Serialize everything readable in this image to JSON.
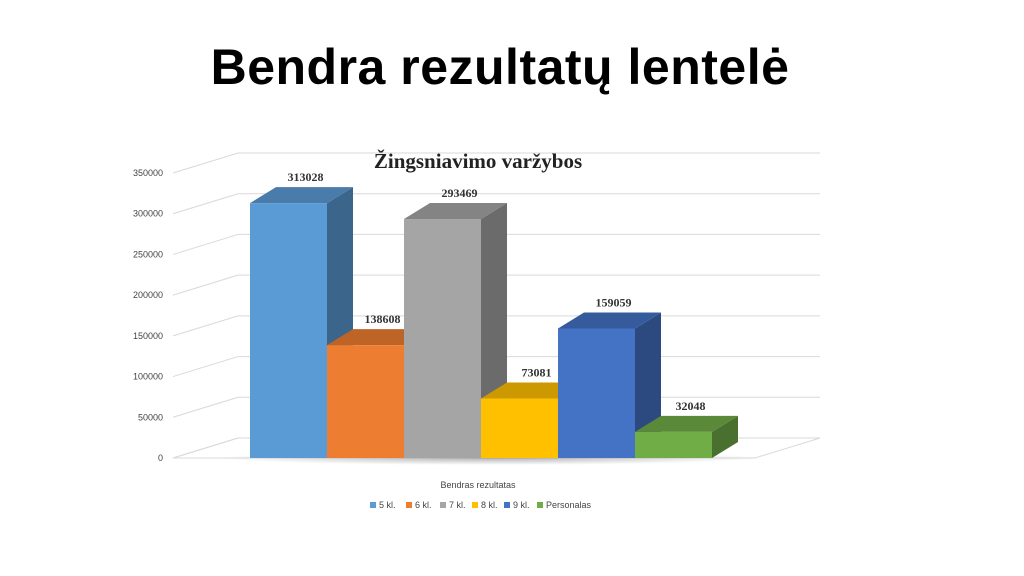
{
  "slide": {
    "title": "Bendra rezultatų lentelė"
  },
  "chart_data": {
    "type": "bar",
    "title": "Žingsniavimo varžybos",
    "categories": [
      "Bendras rezultatas"
    ],
    "xlabel": "",
    "ylabel": "",
    "ylim": [
      0,
      350000
    ],
    "yticks": [
      0,
      50000,
      100000,
      150000,
      200000,
      250000,
      300000,
      350000
    ],
    "grid": true,
    "legend_position": "bottom",
    "series": [
      {
        "name": "5 kl.",
        "values": [
          313028
        ],
        "color": "#5b9bd5"
      },
      {
        "name": "6 kl.",
        "values": [
          138608
        ],
        "color": "#ed7d31"
      },
      {
        "name": "7 kl.",
        "values": [
          293469
        ],
        "color": "#a5a5a5"
      },
      {
        "name": "8 kl.",
        "values": [
          73081
        ],
        "color": "#ffc000"
      },
      {
        "name": "9 kl.",
        "values": [
          159059
        ],
        "color": "#4472c4"
      },
      {
        "name": "Personalas",
        "values": [
          32048
        ],
        "color": "#70ad47"
      }
    ]
  }
}
